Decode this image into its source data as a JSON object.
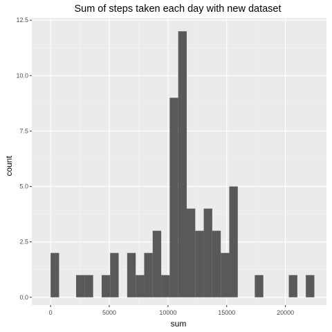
{
  "chart_data": {
    "type": "bar",
    "subtype": "histogram",
    "title": "Sum of steps taken each day with new dataset",
    "xlabel": "sum",
    "ylabel": "count",
    "xlim": [
      -1600,
      23500
    ],
    "ylim": [
      -0.35,
      12.6
    ],
    "x_ticks": [
      0,
      5000,
      10000,
      15000,
      20000
    ],
    "x_tick_labels": [
      "0",
      "5000",
      "10000",
      "15000",
      "20000"
    ],
    "y_ticks": [
      0,
      2.5,
      5,
      7.5,
      10,
      12.5
    ],
    "y_tick_labels": [
      "0.0",
      "2.5",
      "5.0",
      "7.5",
      "10.0",
      "12.5"
    ],
    "grid": true,
    "bins": [
      {
        "x0": 0,
        "x1": 725,
        "count": 2
      },
      {
        "x0": 2174,
        "x1": 2899,
        "count": 1
      },
      {
        "x0": 2899,
        "x1": 3624,
        "count": 1
      },
      {
        "x0": 4349,
        "x1": 5073,
        "count": 1
      },
      {
        "x0": 5073,
        "x1": 5798,
        "count": 2
      },
      {
        "x0": 6523,
        "x1": 7248,
        "count": 2
      },
      {
        "x0": 7248,
        "x1": 7972,
        "count": 1
      },
      {
        "x0": 7972,
        "x1": 8697,
        "count": 2
      },
      {
        "x0": 8697,
        "x1": 9422,
        "count": 3
      },
      {
        "x0": 9422,
        "x1": 10147,
        "count": 1
      },
      {
        "x0": 10147,
        "x1": 10871,
        "count": 9
      },
      {
        "x0": 10871,
        "x1": 11596,
        "count": 12
      },
      {
        "x0": 11596,
        "x1": 12321,
        "count": 4
      },
      {
        "x0": 12321,
        "x1": 13046,
        "count": 3
      },
      {
        "x0": 13046,
        "x1": 13770,
        "count": 4
      },
      {
        "x0": 13770,
        "x1": 14495,
        "count": 3
      },
      {
        "x0": 14495,
        "x1": 15220,
        "count": 2
      },
      {
        "x0": 15220,
        "x1": 15945,
        "count": 5
      },
      {
        "x0": 17394,
        "x1": 18119,
        "count": 1
      },
      {
        "x0": 20293,
        "x1": 21018,
        "count": 1
      },
      {
        "x0": 21743,
        "x1": 22467,
        "count": 1
      }
    ],
    "colors": {
      "panel": "#ebebeb",
      "grid_major": "#ffffff",
      "grid_minor": "#f5f5f5",
      "bar": "#595959"
    }
  }
}
